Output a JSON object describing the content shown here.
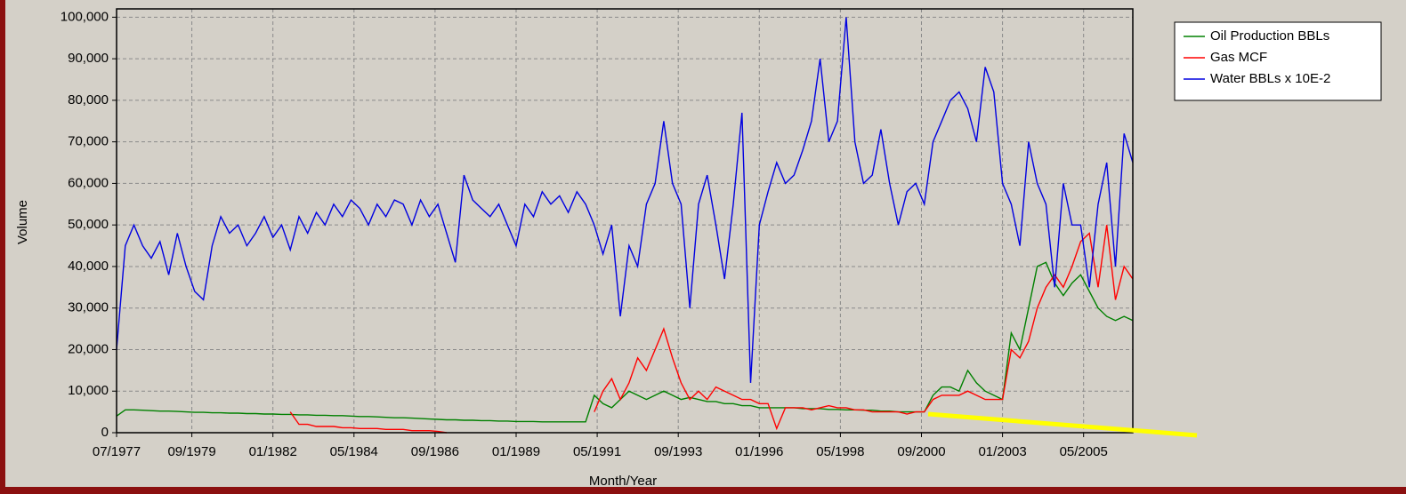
{
  "chart_data": {
    "type": "line",
    "xlabel": "Month/Year",
    "ylabel": "Volume",
    "x": [
      "07/1977",
      "10/1977",
      "01/1978",
      "04/1978",
      "07/1978",
      "10/1978",
      "01/1979",
      "04/1979",
      "07/1979",
      "10/1979",
      "01/1980",
      "04/1980",
      "07/1980",
      "10/1980",
      "01/1981",
      "04/1981",
      "07/1981",
      "10/1981",
      "01/1982",
      "04/1982",
      "07/1982",
      "10/1982",
      "01/1983",
      "04/1983",
      "07/1983",
      "10/1983",
      "01/1984",
      "04/1984",
      "07/1984",
      "10/1984",
      "01/1985",
      "04/1985",
      "07/1985",
      "10/1985",
      "01/1986",
      "04/1986",
      "07/1986",
      "10/1986",
      "01/1987",
      "04/1987",
      "07/1987",
      "10/1987",
      "01/1988",
      "04/1988",
      "07/1988",
      "10/1988",
      "01/1989",
      "04/1989",
      "07/1989",
      "10/1989",
      "01/1990",
      "04/1990",
      "07/1990",
      "10/1990",
      "01/1991",
      "04/1991",
      "07/1991",
      "10/1991",
      "01/1992",
      "04/1992",
      "07/1992",
      "10/1992",
      "01/1993",
      "04/1993",
      "07/1993",
      "10/1993",
      "01/1994",
      "04/1994",
      "07/1994",
      "10/1994",
      "01/1995",
      "04/1995",
      "07/1995",
      "10/1995",
      "01/1996",
      "04/1996",
      "07/1996",
      "10/1996",
      "01/1997",
      "04/1997",
      "07/1997",
      "10/1997",
      "01/1998",
      "04/1998",
      "07/1998",
      "10/1998",
      "01/1999",
      "04/1999",
      "07/1999",
      "10/1999",
      "01/2000",
      "04/2000",
      "07/2000",
      "10/2000",
      "01/2001",
      "04/2001",
      "07/2001",
      "10/2001",
      "01/2002",
      "04/2002",
      "07/2002",
      "10/2002",
      "01/2003",
      "04/2003",
      "07/2003",
      "10/2003",
      "01/2004",
      "04/2004",
      "07/2004",
      "10/2004",
      "01/2005",
      "04/2005",
      "07/2005",
      "10/2005",
      "01/2006",
      "04/2006",
      "07/2006",
      "10/2006"
    ],
    "series": [
      {
        "name": "Oil Production BBLs",
        "color": "#008000",
        "values": [
          4000,
          5500,
          5500,
          5400,
          5300,
          5200,
          5200,
          5100,
          5000,
          4900,
          4900,
          4800,
          4800,
          4700,
          4700,
          4600,
          4600,
          4500,
          4500,
          4400,
          4400,
          4300,
          4300,
          4200,
          4200,
          4100,
          4100,
          4000,
          3900,
          3900,
          3800,
          3700,
          3600,
          3600,
          3500,
          3400,
          3300,
          3200,
          3100,
          3100,
          3000,
          3000,
          2900,
          2900,
          2800,
          2800,
          2700,
          2700,
          2700,
          2600,
          2600,
          2600,
          2600,
          2600,
          2600,
          9000,
          7000,
          6000,
          8000,
          10000,
          9000,
          8000,
          9000,
          10000,
          9000,
          8000,
          8500,
          8000,
          7500,
          7500,
          7000,
          7000,
          6500,
          6500,
          6000,
          6000,
          6000,
          6000,
          6000,
          5800,
          5800,
          5800,
          5600,
          5600,
          5500,
          5500,
          5400,
          5400,
          5200,
          5200,
          5000,
          5000,
          5000,
          5000,
          9000,
          11000,
          11000,
          10000,
          15000,
          12000,
          10000,
          9000,
          8000,
          24000,
          20000,
          30000,
          40000,
          41000,
          36000,
          33000,
          36000,
          38000,
          34000,
          30000,
          28000,
          27000,
          28000,
          27000
        ]
      },
      {
        "name": "Gas MCF",
        "color": "#ff0000",
        "values": [
          null,
          null,
          null,
          null,
          null,
          null,
          null,
          null,
          null,
          null,
          null,
          null,
          null,
          null,
          null,
          null,
          null,
          null,
          null,
          null,
          5000,
          2000,
          2000,
          1500,
          1500,
          1500,
          1200,
          1200,
          1000,
          1000,
          1000,
          800,
          800,
          800,
          500,
          500,
          500,
          300,
          0,
          null,
          null,
          null,
          null,
          null,
          null,
          null,
          null,
          null,
          null,
          null,
          null,
          null,
          null,
          null,
          null,
          5000,
          10000,
          13000,
          8000,
          12000,
          18000,
          15000,
          20000,
          25000,
          18000,
          12000,
          8000,
          10000,
          8000,
          11000,
          10000,
          9000,
          8000,
          8000,
          7000,
          7000,
          1000,
          6000,
          6000,
          6000,
          5500,
          6000,
          6500,
          6000,
          6000,
          5500,
          5500,
          5000,
          5000,
          5000,
          5000,
          4500,
          5000,
          5000,
          8000,
          9000,
          9000,
          9000,
          10000,
          9000,
          8000,
          8000,
          8000,
          20000,
          18000,
          22000,
          30000,
          35000,
          38000,
          35000,
          40000,
          46000,
          48000,
          35000,
          50000,
          32000,
          40000,
          37000
        ]
      },
      {
        "name": "Water BBLs x 10E-2",
        "color": "#0000e0",
        "values": [
          20000,
          45000,
          50000,
          45000,
          42000,
          46000,
          38000,
          48000,
          40000,
          34000,
          32000,
          45000,
          52000,
          48000,
          50000,
          45000,
          48000,
          52000,
          47000,
          50000,
          44000,
          52000,
          48000,
          53000,
          50000,
          55000,
          52000,
          56000,
          54000,
          50000,
          55000,
          52000,
          56000,
          55000,
          50000,
          56000,
          52000,
          55000,
          48000,
          41000,
          62000,
          56000,
          54000,
          52000,
          55000,
          50000,
          45000,
          55000,
          52000,
          58000,
          55000,
          57000,
          53000,
          58000,
          55000,
          50000,
          43000,
          50000,
          28000,
          45000,
          40000,
          55000,
          60000,
          75000,
          60000,
          55000,
          30000,
          55000,
          62000,
          50000,
          37000,
          55000,
          77000,
          12000,
          50000,
          58000,
          65000,
          60000,
          62000,
          68000,
          75000,
          90000,
          70000,
          75000,
          100000,
          70000,
          60000,
          62000,
          73000,
          60000,
          50000,
          58000,
          60000,
          55000,
          70000,
          75000,
          80000,
          82000,
          78000,
          70000,
          88000,
          82000,
          60000,
          55000,
          45000,
          70000,
          60000,
          55000,
          35000,
          60000,
          50000,
          50000,
          35000,
          55000,
          65000,
          40000,
          72000,
          65000
        ]
      }
    ],
    "xlim": [
      "07/1977",
      "10/2006"
    ],
    "xticks": [
      "07/1977",
      "09/1979",
      "01/1982",
      "05/1984",
      "09/1986",
      "01/1989",
      "05/1991",
      "09/1993",
      "01/1996",
      "05/1998",
      "09/2000",
      "01/2003",
      "05/2005"
    ],
    "ylim": [
      0,
      102000
    ],
    "yticks": [
      0,
      {
        "value": 10000,
        "label": "10,000"
      },
      {
        "value": 20000,
        "label": "20,000"
      },
      {
        "value": 30000,
        "label": "30,000"
      },
      {
        "value": 40000,
        "label": "40,000"
      },
      {
        "value": 50000,
        "label": "50,000"
      },
      {
        "value": 60000,
        "label": "60,000"
      },
      {
        "value": 70000,
        "label": "70,000"
      },
      {
        "value": 80000,
        "label": "80,000"
      },
      {
        "value": 90000,
        "label": "90,000"
      },
      {
        "value": 100000,
        "label": "100,000"
      }
    ],
    "grid": true
  }
}
